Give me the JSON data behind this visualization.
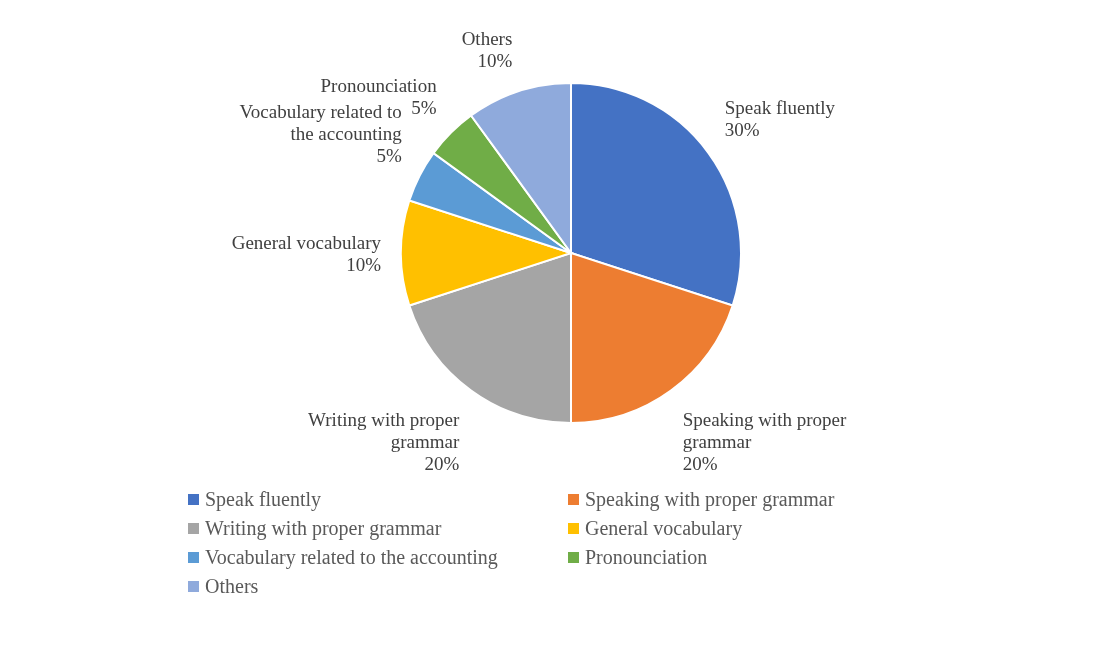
{
  "chart_data": {
    "type": "pie",
    "categories": [
      "Speak fluently",
      "Speaking with proper grammar",
      "Writing with proper grammar",
      "General vocabulary",
      "Vocabulary related to the accounting",
      "Pronounciation",
      "Others"
    ],
    "values": [
      30,
      20,
      20,
      10,
      5,
      5,
      10
    ],
    "value_labels": [
      "30%",
      "20%",
      "20%",
      "10%",
      "5%",
      "5%",
      "10%"
    ],
    "colors": [
      "#4472c4",
      "#ed7d31",
      "#a5a5a5",
      "#ffc000",
      "#5b9bd5",
      "#70ad47",
      "#8faadc"
    ],
    "legend": "bottom"
  }
}
